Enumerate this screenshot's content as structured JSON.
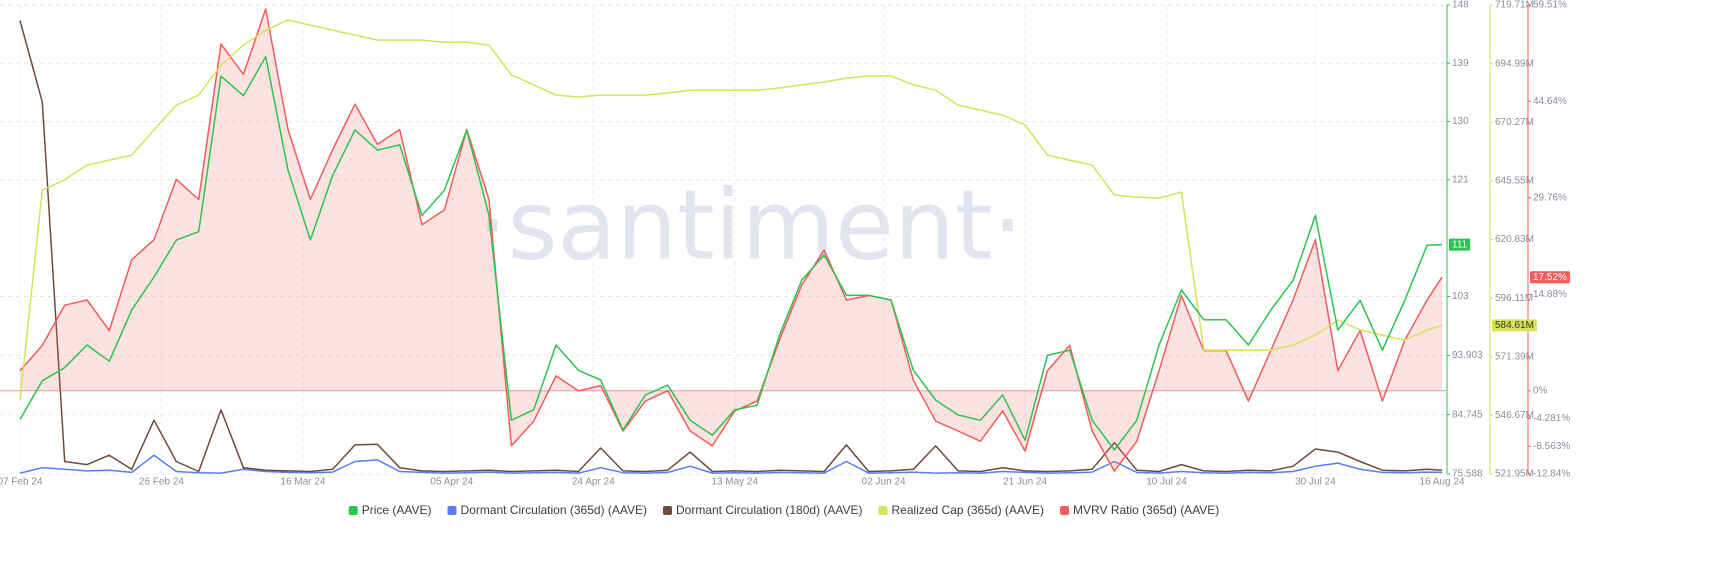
{
  "chart_data": {
    "type": "line",
    "watermark": "·santiment·",
    "grid": true,
    "x": [
      0,
      3,
      6,
      9,
      12,
      15,
      18,
      21,
      24,
      27,
      30,
      33,
      36,
      39,
      42,
      45,
      48,
      51,
      54,
      57,
      60,
      63,
      66,
      69,
      72,
      75,
      78,
      81,
      84,
      87,
      90,
      93,
      96,
      99,
      102,
      105,
      108,
      111,
      114,
      117,
      120,
      123,
      126,
      129,
      132,
      135,
      138,
      141,
      144,
      147,
      150,
      153,
      156,
      159,
      162,
      165,
      168,
      171,
      174,
      177,
      180,
      183,
      186,
      189,
      191
    ],
    "xlim": [
      0,
      191
    ],
    "xticks": [
      {
        "value": 0,
        "label": "07 Feb 24"
      },
      {
        "value": 19,
        "label": "26 Feb 24"
      },
      {
        "value": 38,
        "label": "16 Mar 24"
      },
      {
        "value": 58,
        "label": "05 Apr 24"
      },
      {
        "value": 77,
        "label": "24 Apr 24"
      },
      {
        "value": 96,
        "label": "13 May 24"
      },
      {
        "value": 116,
        "label": "02 Jun 24"
      },
      {
        "value": 135,
        "label": "21 Jun 24"
      },
      {
        "value": 154,
        "label": "10 Jul 24"
      },
      {
        "value": 174,
        "label": "30 Jul 24"
      },
      {
        "value": 191,
        "label": "16 Aug 24"
      }
    ],
    "ylim": [
      75.588,
      148
    ],
    "yticks": [
      75.588,
      84.745,
      93.903,
      103,
      121,
      130,
      139,
      148
    ],
    "y2lim": [
      521.95,
      719.71
    ],
    "y2ticks": [
      {
        "value": 521.95,
        "label": "521.95M"
      },
      {
        "value": 546.67,
        "label": "546.67M"
      },
      {
        "value": 571.39,
        "label": "571.39M"
      },
      {
        "value": 596.11,
        "label": "596.11M"
      },
      {
        "value": 620.83,
        "label": "620.83M"
      },
      {
        "value": 645.55,
        "label": "645.55M"
      },
      {
        "value": 670.27,
        "label": "670.27M"
      },
      {
        "value": 694.99,
        "label": "694.99M"
      },
      {
        "value": 719.71,
        "label": "719.71M"
      }
    ],
    "y3lim": [
      -12.84,
      59.51
    ],
    "y3ticks": [
      {
        "value": -12.84,
        "label": "-12.84%"
      },
      {
        "value": -8.563,
        "label": "-8.563%"
      },
      {
        "value": -4.281,
        "label": "-4.281%"
      },
      {
        "value": 0,
        "label": "0%"
      },
      {
        "value": 14.88,
        "label": "14.88%"
      },
      {
        "value": 29.76,
        "label": "29.76%"
      },
      {
        "value": 44.64,
        "label": "44.64%"
      },
      {
        "value": 59.51,
        "label": "59.51%"
      }
    ],
    "y4lim": [
      0,
      1500000
    ],
    "series": [
      {
        "name": "Price (AAVE)",
        "color": "#2bc44f",
        "axis": "y",
        "last_label": "111",
        "values": [
          84,
          90,
          92,
          95.5,
          93,
          100.9,
          106,
          111.7,
          113,
          137,
          134,
          140,
          122.5,
          111.7,
          121.7,
          128.7,
          125.6,
          126.4,
          115.5,
          119.4,
          128.7,
          115.5,
          83.9,
          85.5,
          95.5,
          91.6,
          90.1,
          82.4,
          87.8,
          89.3,
          83.9,
          81.6,
          85.5,
          86.2,
          97,
          105.5,
          109.4,
          103.2,
          103.2,
          102.4,
          91.6,
          87,
          84.7,
          83.9,
          87.8,
          80.8,
          93.9,
          94.7,
          83.9,
          79.3,
          83.9,
          95.5,
          104,
          99.4,
          99.4,
          95.5,
          100.9,
          105.5,
          115.5,
          97.8,
          102.4,
          94.7,
          102.4,
          110.9,
          111
        ]
      },
      {
        "name": "Dormant Circulation (365d) (AAVE)",
        "color": "#5b7cf0",
        "axis": "y4",
        "values": [
          3000,
          20000,
          15000,
          10000,
          12000,
          5000,
          60000,
          8000,
          4000,
          3000,
          15000,
          8000,
          5000,
          4000,
          6000,
          40000,
          45000,
          8000,
          5000,
          3000,
          4000,
          6000,
          3000,
          4000,
          5000,
          3000,
          20000,
          4000,
          3000,
          5000,
          25000,
          3000,
          4000,
          3000,
          5000,
          4000,
          3000,
          40000,
          3000,
          4000,
          6000,
          3000,
          4000,
          3000,
          8000,
          5000,
          3000,
          4000,
          6000,
          40000,
          5000,
          3000,
          8000,
          4000,
          3000,
          5000,
          4000,
          8000,
          25000,
          35000,
          15000,
          5000,
          4000,
          6000,
          5000
        ]
      },
      {
        "name": "Dormant Circulation (180d) (AAVE)",
        "color": "#6e4a3c",
        "axis": "y4",
        "values": [
          1450000,
          1190000,
          40000,
          30000,
          60000,
          15000,
          172000,
          40000,
          8000,
          205000,
          20000,
          12000,
          10000,
          8000,
          15000,
          93000,
          95000,
          20000,
          10000,
          8000,
          10000,
          12000,
          8000,
          10000,
          12000,
          8000,
          83000,
          10000,
          8000,
          12000,
          70000,
          8000,
          10000,
          8000,
          12000,
          10000,
          8000,
          93000,
          8000,
          10000,
          15000,
          90000,
          10000,
          8000,
          20000,
          10000,
          8000,
          10000,
          15000,
          100000,
          12000,
          8000,
          30000,
          10000,
          8000,
          12000,
          10000,
          25000,
          80000,
          70000,
          40000,
          12000,
          10000,
          15000,
          12000
        ]
      },
      {
        "name": "Realized Cap (365d) (AAVE)",
        "color": "#d6e25a",
        "axis": "y2",
        "last_label": "584.61M",
        "values": [
          553.1,
          641.7,
          646,
          652.2,
          654.3,
          656.4,
          667,
          677.5,
          681.7,
          694.4,
          702.8,
          709.1,
          713.4,
          711.2,
          709.1,
          707,
          704.9,
          704.9,
          704.9,
          704,
          704,
          702.8,
          690.2,
          686,
          681.7,
          680.9,
          681.7,
          681.7,
          681.7,
          682.6,
          683.8,
          683.8,
          683.8,
          683.8,
          684.7,
          686,
          687.2,
          688.9,
          689.8,
          689.8,
          686,
          683.8,
          677.5,
          675.4,
          673.3,
          669.1,
          656.4,
          654.3,
          652.2,
          639.6,
          638.7,
          638.3,
          640.8,
          574.2,
          574.2,
          574.2,
          574.2,
          576.3,
          580.5,
          586.9,
          582.7,
          580.5,
          578.4,
          582.7,
          584.61
        ]
      },
      {
        "name": "MVRV Ratio (365d) (AAVE)",
        "color": "#f25c5c",
        "axis": "y3",
        "last_label": "17.52%",
        "values": [
          3.1,
          7,
          13.2,
          14,
          9.3,
          20.2,
          23.3,
          32.6,
          29.5,
          53.5,
          48.8,
          58.9,
          40.3,
          29.5,
          37.2,
          44.2,
          38,
          40.3,
          25.6,
          27.9,
          40.3,
          29.5,
          -8.5,
          -4.7,
          2.3,
          0,
          0.8,
          -6.2,
          -1.6,
          0,
          -6.2,
          -8.5,
          -3.1,
          -1.6,
          7.8,
          16.3,
          21.7,
          14,
          14.7,
          14,
          1.6,
          -4.7,
          -6.2,
          -7.8,
          -3.1,
          -9.3,
          3.1,
          7,
          -6.2,
          -12.4,
          -7.8,
          3.1,
          14.7,
          6.2,
          6.2,
          -1.6,
          6.2,
          14,
          23.3,
          3.1,
          9.3,
          -1.6,
          7.8,
          14,
          17.52
        ]
      }
    ]
  }
}
